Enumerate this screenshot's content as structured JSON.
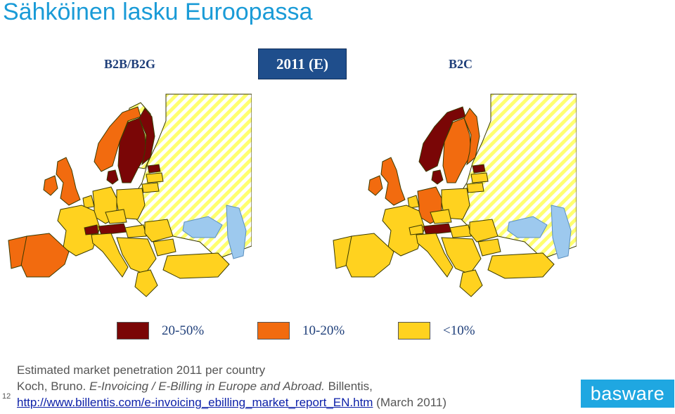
{
  "slide": {
    "title": "Sähköinen lasku Euroopassa",
    "page_number": "12"
  },
  "badge": {
    "text": "2011 (E)"
  },
  "maps": {
    "left_label": "B2B/B2G",
    "right_label": "B2C"
  },
  "legend": [
    {
      "label": "20-50%",
      "color": "#7a0606"
    },
    {
      "label": "10-20%",
      "color": "#f26b0f"
    },
    {
      "label": "<10%",
      "color": "#ffd21f"
    }
  ],
  "caption": {
    "line1": "Estimated market penetration 2011 per country",
    "line2_prefix": "Koch, Bruno. ",
    "line2_italic": "E-Invoicing / E-Billing in Europe and Abroad.",
    "line2_suffix": " Billentis,",
    "link": "http://www.billentis.com/e-invoicing_ebilling_market_report_EN.htm",
    "line3_suffix": " (March 2011)"
  },
  "logo": {
    "text": "basware"
  },
  "colors": {
    "title": "#1a9bd7",
    "badge_bg": "#1f4e8c",
    "no_data_stripes": "#ffff70",
    "sea": "#9dc9ee",
    "border": "#3a3a00"
  }
}
